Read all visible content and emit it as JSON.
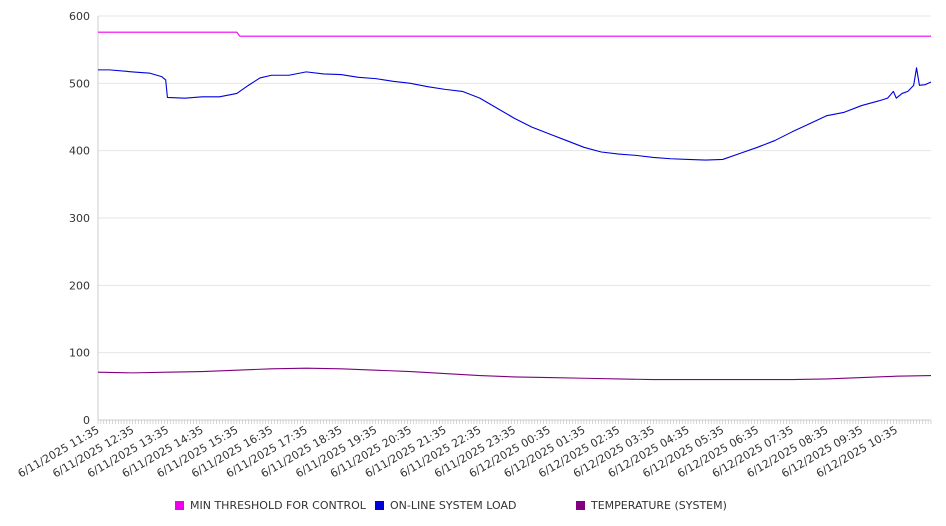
{
  "chart_data": {
    "type": "line",
    "ylim": [
      0,
      600
    ],
    "yticks": [
      0,
      100,
      200,
      300,
      400,
      500,
      600
    ],
    "x_tick_labels": [
      "6/11/2025 11:35",
      "6/11/2025 12:35",
      "6/11/2025 13:35",
      "6/11/2025 14:35",
      "6/11/2025 15:35",
      "6/11/2025 16:35",
      "6/11/2025 17:35",
      "6/11/2025 18:35",
      "6/11/2025 19:35",
      "6/11/2025 20:35",
      "6/11/2025 21:35",
      "6/11/2025 22:35",
      "6/11/2025 23:35",
      "6/12/2025 00:35",
      "6/12/2025 01:35",
      "6/12/2025 02:35",
      "6/12/2025 03:35",
      "6/12/2025 04:35",
      "6/12/2025 05:35",
      "6/12/2025 06:35",
      "6/12/2025 07:35",
      "6/12/2025 08:35",
      "6/12/2025 09:35",
      "6/12/2025 10:35"
    ],
    "x_start": "6/11/2025 11:35",
    "x_end": "6/12/2025 11:35",
    "grid": true,
    "legend_position": "bottom",
    "series": [
      {
        "name": "MIN THRESHOLD FOR CONTROL",
        "color": "#ee00ee",
        "points": [
          [
            "6/11/2025 11:35",
            576
          ],
          [
            "6/11/2025 15:35",
            576
          ],
          [
            "6/11/2025 15:40",
            570
          ],
          [
            "6/12/2025 11:35",
            570
          ]
        ]
      },
      {
        "name": "ON-LINE SYSTEM LOAD",
        "color": "#0000dd",
        "points": [
          [
            "6/11/2025 11:35",
            520
          ],
          [
            "6/11/2025 11:55",
            520
          ],
          [
            "6/11/2025 12:35",
            517
          ],
          [
            "6/11/2025 13:05",
            515
          ],
          [
            "6/11/2025 13:25",
            510
          ],
          [
            "6/11/2025 13:32",
            505
          ],
          [
            "6/11/2025 13:35",
            479
          ],
          [
            "6/11/2025 14:05",
            478
          ],
          [
            "6/11/2025 14:35",
            480
          ],
          [
            "6/11/2025 15:05",
            480
          ],
          [
            "6/11/2025 15:35",
            485
          ],
          [
            "6/11/2025 15:55",
            497
          ],
          [
            "6/11/2025 16:15",
            508
          ],
          [
            "6/11/2025 16:35",
            512
          ],
          [
            "6/11/2025 17:05",
            512
          ],
          [
            "6/11/2025 17:35",
            517
          ],
          [
            "6/11/2025 18:05",
            514
          ],
          [
            "6/11/2025 18:35",
            513
          ],
          [
            "6/11/2025 19:05",
            509
          ],
          [
            "6/11/2025 19:35",
            507
          ],
          [
            "6/11/2025 20:05",
            503
          ],
          [
            "6/11/2025 20:35",
            500
          ],
          [
            "6/11/2025 21:05",
            495
          ],
          [
            "6/11/2025 21:35",
            491
          ],
          [
            "6/11/2025 22:05",
            488
          ],
          [
            "6/11/2025 22:35",
            478
          ],
          [
            "6/11/2025 23:05",
            463
          ],
          [
            "6/11/2025 23:35",
            448
          ],
          [
            "6/12/2025 00:05",
            435
          ],
          [
            "6/12/2025 00:35",
            425
          ],
          [
            "6/12/2025 01:05",
            415
          ],
          [
            "6/12/2025 01:35",
            405
          ],
          [
            "6/12/2025 02:05",
            398
          ],
          [
            "6/12/2025 02:35",
            395
          ],
          [
            "6/12/2025 03:05",
            393
          ],
          [
            "6/12/2025 03:35",
            390
          ],
          [
            "6/12/2025 04:05",
            388
          ],
          [
            "6/12/2025 04:35",
            387
          ],
          [
            "6/12/2025 05:05",
            386
          ],
          [
            "6/12/2025 05:35",
            387
          ],
          [
            "6/12/2025 06:05",
            396
          ],
          [
            "6/12/2025 06:35",
            405
          ],
          [
            "6/12/2025 07:05",
            415
          ],
          [
            "6/12/2025 07:35",
            428
          ],
          [
            "6/12/2025 08:05",
            440
          ],
          [
            "6/12/2025 08:35",
            452
          ],
          [
            "6/12/2025 09:05",
            457
          ],
          [
            "6/12/2025 09:35",
            467
          ],
          [
            "6/12/2025 10:05",
            474
          ],
          [
            "6/12/2025 10:20",
            478
          ],
          [
            "6/12/2025 10:30",
            488
          ],
          [
            "6/12/2025 10:35",
            478
          ],
          [
            "6/12/2025 10:45",
            485
          ],
          [
            "6/12/2025 10:55",
            488
          ],
          [
            "6/12/2025 11:05",
            497
          ],
          [
            "6/12/2025 11:10",
            523
          ],
          [
            "6/12/2025 11:15",
            497
          ],
          [
            "6/12/2025 11:25",
            498
          ],
          [
            "6/12/2025 11:35",
            502
          ]
        ]
      },
      {
        "name": "TEMPERATURE (SYSTEM)",
        "color": "#800080",
        "points": [
          [
            "6/11/2025 11:35",
            71
          ],
          [
            "6/11/2025 12:35",
            70
          ],
          [
            "6/11/2025 13:35",
            71
          ],
          [
            "6/11/2025 14:35",
            72
          ],
          [
            "6/11/2025 15:35",
            74
          ],
          [
            "6/11/2025 16:35",
            76
          ],
          [
            "6/11/2025 17:35",
            77
          ],
          [
            "6/11/2025 18:35",
            76
          ],
          [
            "6/11/2025 19:35",
            74
          ],
          [
            "6/11/2025 20:35",
            72
          ],
          [
            "6/11/2025 21:35",
            69
          ],
          [
            "6/11/2025 22:35",
            66
          ],
          [
            "6/11/2025 23:35",
            64
          ],
          [
            "6/12/2025 00:35",
            63
          ],
          [
            "6/12/2025 01:35",
            62
          ],
          [
            "6/12/2025 02:35",
            61
          ],
          [
            "6/12/2025 03:35",
            60
          ],
          [
            "6/12/2025 04:35",
            60
          ],
          [
            "6/12/2025 05:35",
            60
          ],
          [
            "6/12/2025 06:35",
            60
          ],
          [
            "6/12/2025 07:35",
            60
          ],
          [
            "6/12/2025 08:35",
            61
          ],
          [
            "6/12/2025 09:35",
            63
          ],
          [
            "6/12/2025 10:35",
            65
          ],
          [
            "6/12/2025 11:35",
            66
          ]
        ]
      }
    ]
  }
}
